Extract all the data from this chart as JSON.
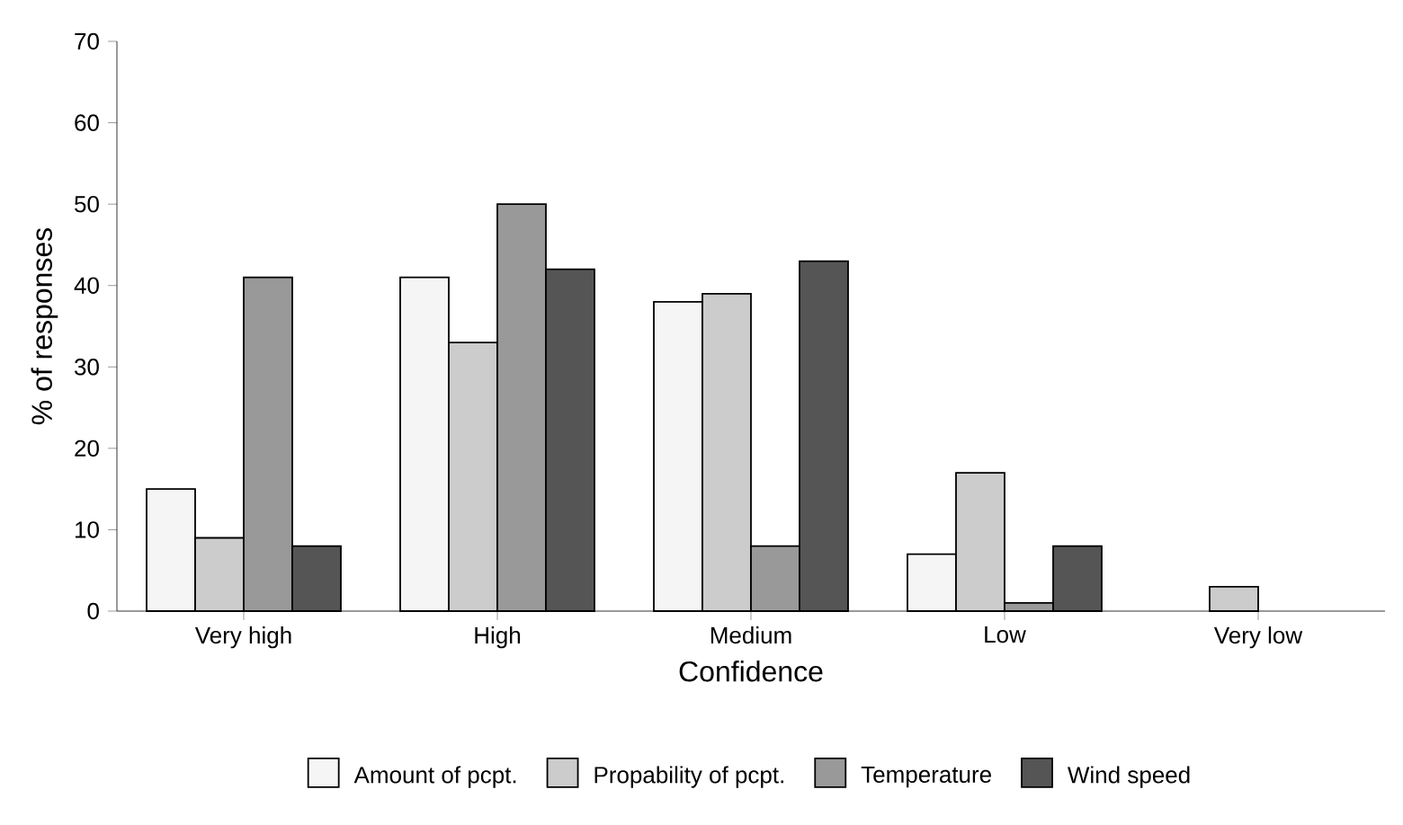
{
  "chart_data": {
    "type": "bar",
    "xlabel": "Confidence",
    "ylabel": "% of responses",
    "categories": [
      "Very high",
      "High",
      "Medium",
      "Low",
      "Very low"
    ],
    "series": [
      {
        "name": "Amount of pcpt.",
        "color": "#f5f5f5",
        "values": [
          15,
          41,
          38,
          7,
          null
        ]
      },
      {
        "name": "Propability of pcpt.",
        "color": "#cccccc",
        "values": [
          9,
          33,
          39,
          17,
          3
        ]
      },
      {
        "name": "Temperature",
        "color": "#999999",
        "values": [
          41,
          50,
          8,
          1,
          null
        ]
      },
      {
        "name": "Wind speed",
        "color": "#555555",
        "values": [
          8,
          42,
          43,
          8,
          null
        ]
      }
    ],
    "ylim": [
      0,
      70
    ],
    "yticks": [
      0,
      10,
      20,
      30,
      40,
      50,
      60,
      70
    ],
    "legend": "bottom"
  }
}
